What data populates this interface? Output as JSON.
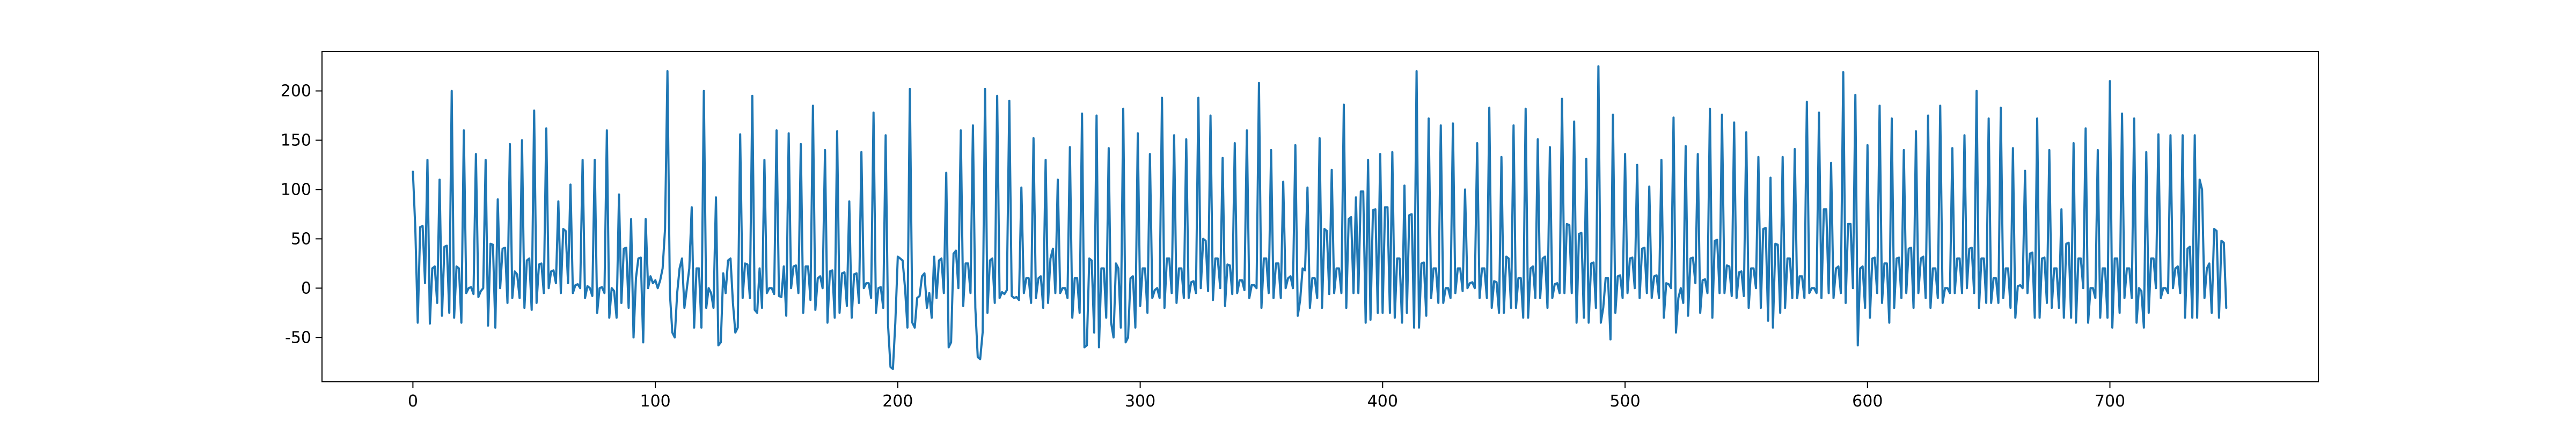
{
  "colors": {
    "series": "#1f77b4",
    "axes": "#000000",
    "background": "#ffffff"
  },
  "chart_data": {
    "type": "line",
    "title": "",
    "xlabel": "",
    "ylabel": "",
    "grid": false,
    "legend": "none",
    "xlim": [
      -37.5,
      786
    ],
    "ylim": [
      -95,
      240
    ],
    "x_ticks": [
      0,
      100,
      200,
      300,
      400,
      500,
      600,
      700
    ],
    "y_ticks": [
      -50,
      0,
      50,
      100,
      150,
      200
    ],
    "series": [
      {
        "x_start": 0,
        "x_step": 1,
        "values": [
          118,
          60,
          -35,
          62,
          63,
          5,
          130,
          -36,
          20,
          22,
          -15,
          110,
          -28,
          42,
          43,
          -25,
          200,
          -30,
          22,
          20,
          -35,
          160,
          -5,
          0,
          1,
          -6,
          136,
          -9,
          -3,
          0,
          130,
          -38,
          45,
          44,
          -40,
          90,
          0,
          40,
          41,
          -15,
          146,
          -10,
          17,
          14,
          -10,
          150,
          -20,
          28,
          30,
          -22,
          180,
          -15,
          24,
          25,
          -5,
          162,
          0,
          17,
          18,
          5,
          88,
          -5,
          60,
          58,
          5,
          105,
          -5,
          3,
          4,
          0,
          130,
          -10,
          2,
          0,
          -8,
          130,
          -25,
          0,
          1,
          -5,
          160,
          -30,
          0,
          -3,
          -30,
          95,
          -15,
          40,
          41,
          -20,
          70,
          -50,
          10,
          30,
          31,
          -55,
          70,
          0,
          12,
          5,
          8,
          0,
          8,
          20,
          60,
          220,
          -5,
          -45,
          -50,
          -5,
          20,
          30,
          -20,
          0,
          20,
          82,
          -40,
          20,
          20,
          -40,
          200,
          -20,
          0,
          -5,
          -20,
          92,
          -58,
          -55,
          15,
          -5,
          28,
          30,
          -15,
          -45,
          -40,
          156,
          -10,
          25,
          24,
          -10,
          195,
          -22,
          -25,
          20,
          -20,
          130,
          -5,
          0,
          0,
          -6,
          160,
          -8,
          -9,
          22,
          -28,
          157,
          0,
          22,
          23,
          -5,
          146,
          -25,
          22,
          22,
          -12,
          185,
          -22,
          10,
          12,
          0,
          140,
          -35,
          17,
          18,
          -30,
          159,
          -25,
          15,
          16,
          -18,
          88,
          -30,
          14,
          15,
          -15,
          138,
          0,
          5,
          5,
          -10,
          178,
          -25,
          0,
          1,
          -20,
          155,
          -38,
          -80,
          -82,
          -35,
          32,
          30,
          28,
          0,
          -40,
          202,
          -35,
          -40,
          -10,
          -8,
          12,
          15,
          -20,
          -5,
          -30,
          32,
          -10,
          28,
          30,
          -5,
          117,
          -60,
          -55,
          35,
          38,
          0,
          160,
          -18,
          25,
          25,
          -5,
          165,
          -20,
          -70,
          -72,
          -45,
          202,
          -25,
          28,
          30,
          -15,
          195,
          -10,
          -4,
          -6,
          -2,
          190,
          -8,
          -10,
          -9,
          -12,
          102,
          -5,
          10,
          10,
          -15,
          152,
          -10,
          10,
          12,
          -20,
          130,
          -15,
          30,
          40,
          -5,
          110,
          -5,
          0,
          0,
          -10,
          143,
          -30,
          10,
          10,
          -25,
          177,
          -60,
          -58,
          30,
          28,
          -45,
          175,
          -60,
          20,
          20,
          -30,
          142,
          -35,
          -50,
          25,
          20,
          -40,
          182,
          -55,
          -50,
          10,
          12,
          -40,
          157,
          -18,
          20,
          20,
          -25,
          136,
          -10,
          -2,
          0,
          -10,
          193,
          -20,
          30,
          30,
          -5,
          155,
          -15,
          20,
          20,
          -10,
          151,
          -10,
          6,
          7,
          -5,
          193,
          0,
          50,
          48,
          -3,
          175,
          -12,
          30,
          30,
          0,
          132,
          -18,
          24,
          23,
          -6,
          147,
          -5,
          8,
          8,
          -2,
          160,
          -10,
          3,
          3,
          0,
          208,
          -20,
          30,
          30,
          -5,
          140,
          -10,
          25,
          25,
          -10,
          108,
          0,
          10,
          12,
          0,
          145,
          -28,
          -12,
          20,
          18,
          102,
          -20,
          10,
          10,
          -10,
          152,
          -20,
          60,
          58,
          -6,
          120,
          -5,
          20,
          20,
          -5,
          186,
          -20,
          70,
          72,
          -5,
          92,
          -5,
          98,
          98,
          -35,
          130,
          -32,
          79,
          80,
          -25,
          136,
          -25,
          82,
          82,
          -25,
          138,
          -30,
          30,
          30,
          -35,
          104,
          -25,
          74,
          75,
          -40,
          220,
          -40,
          25,
          26,
          -28,
          172,
          -10,
          20,
          20,
          -15,
          165,
          -15,
          0,
          0,
          -10,
          167,
          -5,
          20,
          20,
          -3,
          100,
          0,
          5,
          6,
          0,
          147,
          -10,
          20,
          20,
          -10,
          183,
          -20,
          7,
          6,
          -25,
          133,
          -25,
          32,
          30,
          -20,
          165,
          -20,
          10,
          10,
          -30,
          182,
          -30,
          20,
          22,
          -10,
          151,
          -10,
          30,
          32,
          -20,
          143,
          -10,
          4,
          5,
          -5,
          192,
          -5,
          65,
          64,
          -5,
          169,
          -35,
          55,
          56,
          -30,
          131,
          -35,
          25,
          26,
          -20,
          225,
          -35,
          -20,
          10,
          10,
          -52,
          176,
          -25,
          12,
          13,
          -10,
          136,
          -5,
          30,
          31,
          0,
          125,
          -10,
          40,
          41,
          -5,
          103,
          -10,
          12,
          13,
          -10,
          130,
          -30,
          5,
          4,
          0,
          173,
          -45,
          -10,
          0,
          -15,
          144,
          -28,
          30,
          31,
          5,
          136,
          -25,
          8,
          9,
          -5,
          182,
          -30,
          48,
          49,
          -5,
          176,
          -5,
          23,
          22,
          -8,
          168,
          -10,
          16,
          17,
          -8,
          158,
          -20,
          20,
          20,
          0,
          133,
          -20,
          60,
          61,
          -33,
          112,
          -40,
          45,
          44,
          -25,
          133,
          -20,
          30,
          30,
          -10,
          141,
          -10,
          12,
          12,
          -10,
          189,
          -5,
          0,
          0,
          -5,
          178,
          -10,
          80,
          80,
          -5,
          127,
          -10,
          20,
          22,
          -5,
          219,
          -15,
          65,
          65,
          0,
          196,
          -58,
          20,
          22,
          -20,
          145,
          -30,
          30,
          31,
          -5,
          185,
          -15,
          25,
          25,
          -35,
          172,
          -20,
          30,
          31,
          -10,
          140,
          -5,
          40,
          41,
          -20,
          159,
          -5,
          30,
          32,
          -10,
          175,
          -20,
          20,
          20,
          -10,
          185,
          -15,
          0,
          0,
          -5,
          142,
          -5,
          30,
          30,
          -5,
          155,
          0,
          40,
          41,
          -5,
          200,
          -20,
          30,
          30,
          -15,
          172,
          -15,
          10,
          10,
          -15,
          183,
          -10,
          20,
          20,
          -20,
          142,
          -30,
          2,
          3,
          0,
          119,
          -5,
          35,
          36,
          -30,
          172,
          -30,
          30,
          31,
          -15,
          140,
          -20,
          20,
          20,
          -20,
          80,
          -30,
          45,
          46,
          -30,
          147,
          -35,
          30,
          30,
          0,
          162,
          -35,
          0,
          0,
          -10,
          140,
          -30,
          20,
          20,
          -30,
          210,
          -40,
          30,
          30,
          -25,
          177,
          -10,
          20,
          20,
          -10,
          172,
          -35,
          0,
          -3,
          -40,
          138,
          -25,
          30,
          30,
          0,
          156,
          -10,
          0,
          0,
          -5,
          155,
          0,
          20,
          22,
          -5,
          155,
          -30,
          40,
          42,
          -30,
          155,
          -30,
          110,
          100,
          -10,
          20,
          25,
          -25,
          60,
          58,
          -30,
          48,
          46,
          -20
        ]
      }
    ]
  }
}
